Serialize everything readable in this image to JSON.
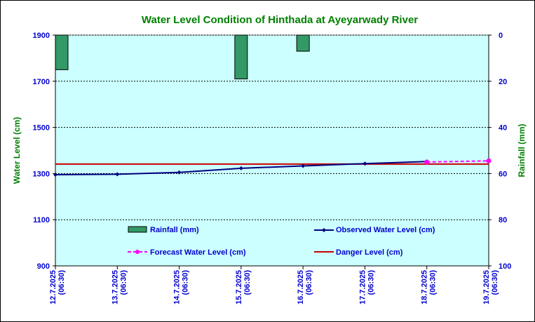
{
  "chart_data": {
    "type": "line",
    "title": "Water Level Condition of Hinthada at Ayeyarwady River",
    "ylabel": "Water Level (cm)",
    "y2label": "Rainfall (mm)",
    "ylim": [
      900,
      1900
    ],
    "y2lim": [
      0,
      100
    ],
    "y2_inverted": true,
    "yticks": [
      "1900",
      "1700",
      "1500",
      "1300",
      "1100",
      "900"
    ],
    "y2ticks": [
      "0",
      "20",
      "40",
      "60",
      "80",
      "100"
    ],
    "x_labels": [
      {
        "date": "12.7.2025",
        "time": "(06:30)"
      },
      {
        "date": "13.7.2025",
        "time": "(06:30)"
      },
      {
        "date": "14.7.2025",
        "time": "(06:30)"
      },
      {
        "date": "15.7.2025",
        "time": "(06:30)"
      },
      {
        "date": "16.7.2025",
        "time": "(06:30)"
      },
      {
        "date": "17.7.2025",
        "time": "(06:30)"
      },
      {
        "date": "18.7.2025",
        "time": "(06:30)"
      },
      {
        "date": "19.7.2025",
        "time": "(06:30)"
      }
    ],
    "grid": true,
    "legend_position": "lower-center-inside",
    "series": [
      {
        "name": "Rainfall (mm)",
        "type": "bar",
        "axis": "right",
        "color": "#339966",
        "values": [
          15,
          0,
          0,
          19,
          7,
          0,
          0,
          0
        ]
      },
      {
        "name": "Observed Water Level (cm)",
        "type": "line",
        "axis": "left",
        "color": "#000080",
        "values": [
          1295,
          1297,
          1305,
          1323,
          1333,
          1343,
          1352,
          null
        ]
      },
      {
        "name": "Forecast Water Level (cm)",
        "type": "line",
        "axis": "left",
        "color": "#ff00ff",
        "dashed": true,
        "values": [
          null,
          null,
          null,
          null,
          null,
          null,
          1350,
          1355
        ]
      },
      {
        "name": "Danger Level (cm)",
        "type": "line",
        "axis": "left",
        "color": "#cc0000",
        "constant": 1341
      }
    ],
    "colors": {
      "plot_background": "#ccffff",
      "title": "#008000",
      "left_axis_title": "#008000",
      "right_axis_title": "#008000",
      "tick_labels": "#0000cc",
      "legend_text": "#0000cc"
    }
  }
}
